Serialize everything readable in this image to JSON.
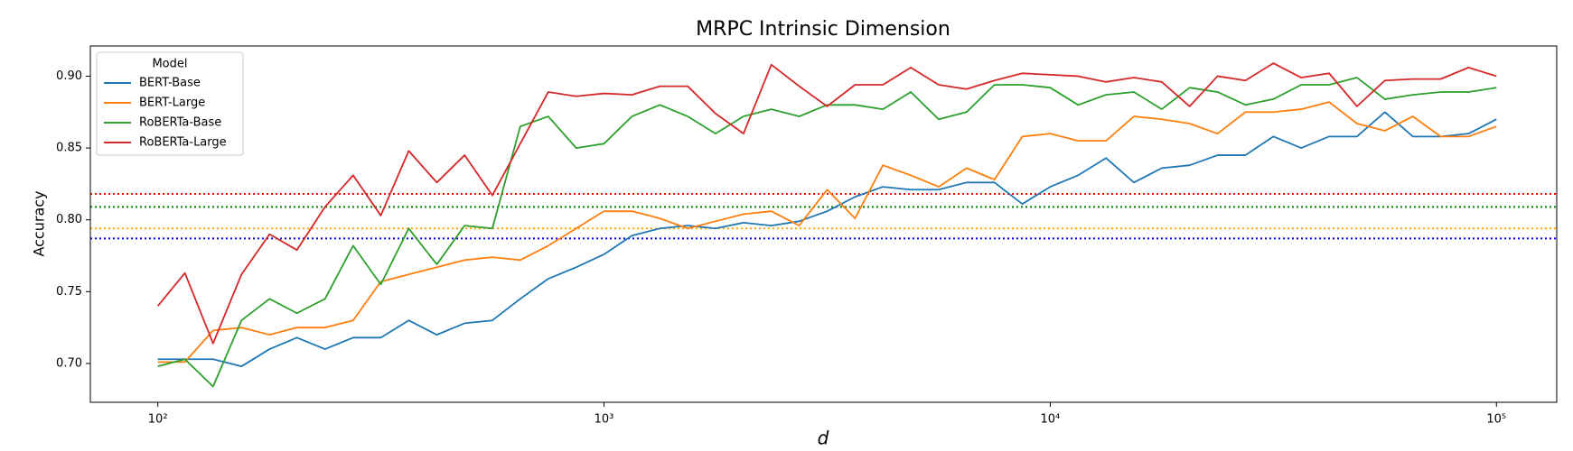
{
  "chart_data": {
    "type": "line",
    "title": "MRPC Intrinsic Dimension",
    "x_label": "d",
    "y_label": "Accuracy",
    "x_scale": "log",
    "grid": false,
    "legend_title": "Model",
    "legend_position": "upper-left",
    "x": [
      100,
      115,
      133,
      154,
      178,
      205,
      237,
      274,
      316,
      365,
      422,
      487,
      562,
      649,
      750,
      866,
      1000,
      1155,
      1334,
      1540,
      1778,
      2054,
      2371,
      2738,
      3162,
      3652,
      4217,
      4870,
      5623,
      6494,
      7499,
      8660,
      10000,
      11548,
      13335,
      15399,
      17783,
      20535,
      23714,
      27384,
      31623,
      36517,
      42170,
      48697,
      56234,
      64938,
      74989,
      86596,
      100000
    ],
    "series": [
      {
        "name": "BERT-Base",
        "color": "#1f77b4",
        "values": [
          0.703,
          0.703,
          0.703,
          0.698,
          0.71,
          0.718,
          0.71,
          0.718,
          0.718,
          0.73,
          0.72,
          0.728,
          0.73,
          0.745,
          0.759,
          0.767,
          0.776,
          0.789,
          0.794,
          0.796,
          0.794,
          0.798,
          0.796,
          0.799,
          0.806,
          0.816,
          0.823,
          0.821,
          0.821,
          0.826,
          0.826,
          0.811,
          0.823,
          0.831,
          0.843,
          0.826,
          0.836,
          0.838,
          0.845,
          0.845,
          0.858,
          0.85,
          0.858,
          0.858,
          0.875,
          0.858,
          0.858,
          0.86,
          0.87
        ]
      },
      {
        "name": "BERT-Large",
        "color": "#ff7f0e",
        "values": [
          0.701,
          0.701,
          0.723,
          0.725,
          0.72,
          0.725,
          0.725,
          0.73,
          0.757,
          0.762,
          0.767,
          0.772,
          0.774,
          0.772,
          0.782,
          0.794,
          0.806,
          0.806,
          0.801,
          0.794,
          0.799,
          0.804,
          0.806,
          0.796,
          0.821,
          0.801,
          0.838,
          0.831,
          0.823,
          0.836,
          0.828,
          0.858,
          0.86,
          0.855,
          0.855,
          0.872,
          0.87,
          0.867,
          0.86,
          0.875,
          0.875,
          0.877,
          0.882,
          0.867,
          0.862,
          0.872,
          0.858,
          0.858,
          0.865
        ]
      },
      {
        "name": "RoBERTa-Base",
        "color": "#2ca02c",
        "values": [
          0.698,
          0.703,
          0.684,
          0.73,
          0.745,
          0.735,
          0.745,
          0.782,
          0.755,
          0.794,
          0.769,
          0.796,
          0.794,
          0.865,
          0.872,
          0.85,
          0.853,
          0.872,
          0.88,
          0.872,
          0.86,
          0.872,
          0.877,
          0.872,
          0.88,
          0.88,
          0.877,
          0.889,
          0.87,
          0.875,
          0.894,
          0.894,
          0.892,
          0.88,
          0.887,
          0.889,
          0.877,
          0.892,
          0.889,
          0.88,
          0.884,
          0.894,
          0.894,
          0.899,
          0.884,
          0.887,
          0.889,
          0.889,
          0.892
        ]
      },
      {
        "name": "RoBERTa-Large",
        "color": "#d62728",
        "values": [
          0.74,
          0.763,
          0.714,
          0.762,
          0.79,
          0.779,
          0.809,
          0.831,
          0.803,
          0.848,
          0.826,
          0.845,
          0.817,
          0.853,
          0.889,
          0.886,
          0.888,
          0.887,
          0.893,
          0.893,
          0.874,
          0.86,
          0.908,
          0.893,
          0.879,
          0.894,
          0.894,
          0.906,
          0.894,
          0.891,
          0.897,
          0.902,
          0.901,
          0.9,
          0.896,
          0.899,
          0.896,
          0.879,
          0.9,
          0.897,
          0.909,
          0.899,
          0.902,
          0.879,
          0.897,
          0.898,
          0.898,
          0.906,
          0.9
        ]
      }
    ],
    "hlines": [
      {
        "value": 0.818,
        "color": "red"
      },
      {
        "value": 0.809,
        "color": "green"
      },
      {
        "value": 0.794,
        "color": "orange"
      },
      {
        "value": 0.787,
        "color": "blue"
      }
    ],
    "xlim": [
      70.6,
      136500
    ],
    "ylim": [
      0.673,
      0.921
    ],
    "xticks": [
      {
        "value": 100,
        "label": "10²"
      },
      {
        "value": 1000,
        "label": "10³"
      },
      {
        "value": 10000,
        "label": "10⁴"
      },
      {
        "value": 100000,
        "label": "10⁵"
      }
    ],
    "yticks": [
      {
        "value": 0.7,
        "label": "0.70"
      },
      {
        "value": 0.75,
        "label": "0.75"
      },
      {
        "value": 0.8,
        "label": "0.80"
      },
      {
        "value": 0.85,
        "label": "0.85"
      },
      {
        "value": 0.9,
        "label": "0.90"
      }
    ]
  }
}
